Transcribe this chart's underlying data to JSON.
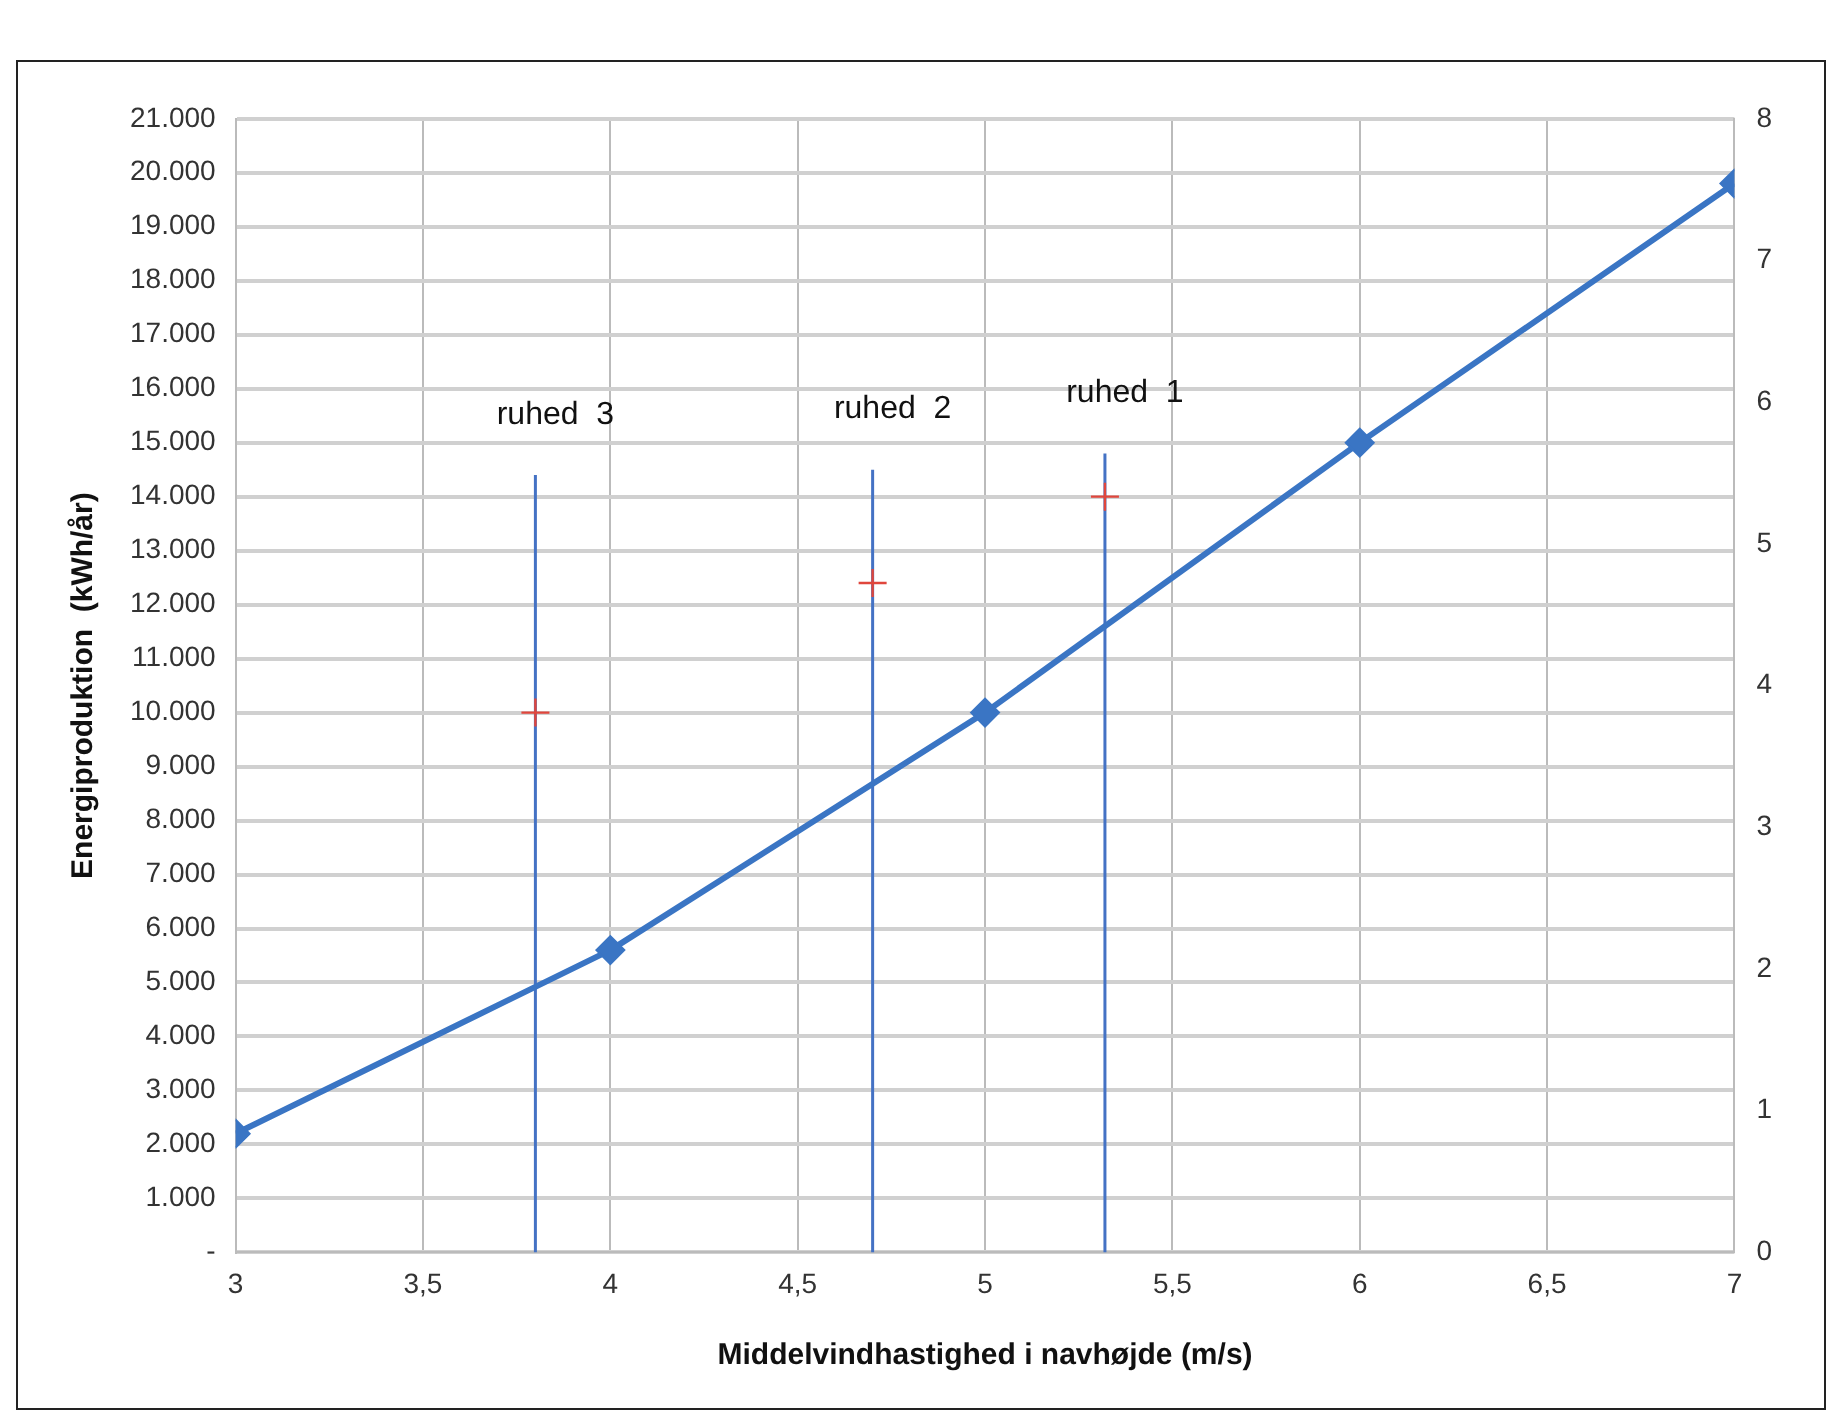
{
  "chart_data": {
    "type": "line",
    "xlabel": "Middelvindhastighed i navhøjde (m/s)",
    "ylabel": "Energiproduktion  (kWh/år)",
    "xlim": [
      3,
      7
    ],
    "xticks": [
      3,
      {
        "value": 3.5,
        "label": "3,5"
      },
      4,
      {
        "value": 4.5,
        "label": "4,5"
      },
      5,
      {
        "value": 5.5,
        "label": "5,5"
      },
      6,
      {
        "value": 6.5,
        "label": "6,5"
      },
      7
    ],
    "ylim": [
      0,
      21000
    ],
    "yticks": [
      {
        "value": 0,
        "label": "-"
      },
      {
        "value": 1000,
        "label": "1.000"
      },
      {
        "value": 2000,
        "label": "2.000"
      },
      {
        "value": 3000,
        "label": "3.000"
      },
      {
        "value": 4000,
        "label": "4.000"
      },
      {
        "value": 5000,
        "label": "5.000"
      },
      {
        "value": 6000,
        "label": "6.000"
      },
      {
        "value": 7000,
        "label": "7.000"
      },
      {
        "value": 8000,
        "label": "8.000"
      },
      {
        "value": 9000,
        "label": "9.000"
      },
      {
        "value": 10000,
        "label": "10.000"
      },
      {
        "value": 11000,
        "label": "11.000"
      },
      {
        "value": 12000,
        "label": "12.000"
      },
      {
        "value": 13000,
        "label": "13.000"
      },
      {
        "value": 14000,
        "label": "14.000"
      },
      {
        "value": 15000,
        "label": "15.000"
      },
      {
        "value": 16000,
        "label": "16.000"
      },
      {
        "value": 17000,
        "label": "17.000"
      },
      {
        "value": 18000,
        "label": "18.000"
      },
      {
        "value": 19000,
        "label": "19.000"
      },
      {
        "value": 20000,
        "label": "20.000"
      },
      {
        "value": 21000,
        "label": "21.000"
      }
    ],
    "y2lim": [
      0,
      8
    ],
    "y2ticks": [
      0,
      1,
      2,
      3,
      4,
      5,
      6,
      7,
      8
    ],
    "grid": true,
    "legend": false,
    "series": [
      {
        "color": "#3a75c4",
        "marker": "diamond",
        "x": [
          3,
          4,
          5,
          6,
          7
        ],
        "values": [
          2200,
          5600,
          10000,
          15000,
          19800
        ]
      },
      {
        "type": "scatter",
        "color": "#e0463c",
        "marker": "cross",
        "x": [
          3.8,
          4.7,
          5.32
        ],
        "values": [
          10000,
          12400,
          14000
        ]
      },
      {
        "color": "#4472c4",
        "marker": "none",
        "x": [
          3.8,
          3.8
        ],
        "values": [
          0,
          14400
        ]
      },
      {
        "color": "#4472c4",
        "marker": "none",
        "x": [
          4.7,
          4.7
        ],
        "values": [
          0,
          14500
        ]
      },
      {
        "color": "#4472c4",
        "marker": "none",
        "x": [
          5.32,
          5.32
        ],
        "values": [
          0,
          14800
        ]
      }
    ],
    "annotations": [
      {
        "text": "ruhed  3",
        "x": 3.8,
        "y": 14400
      },
      {
        "text": "ruhed  2",
        "x": 4.7,
        "y": 14500
      },
      {
        "text": "ruhed  1",
        "x": 5.32,
        "y": 14800
      }
    ]
  }
}
